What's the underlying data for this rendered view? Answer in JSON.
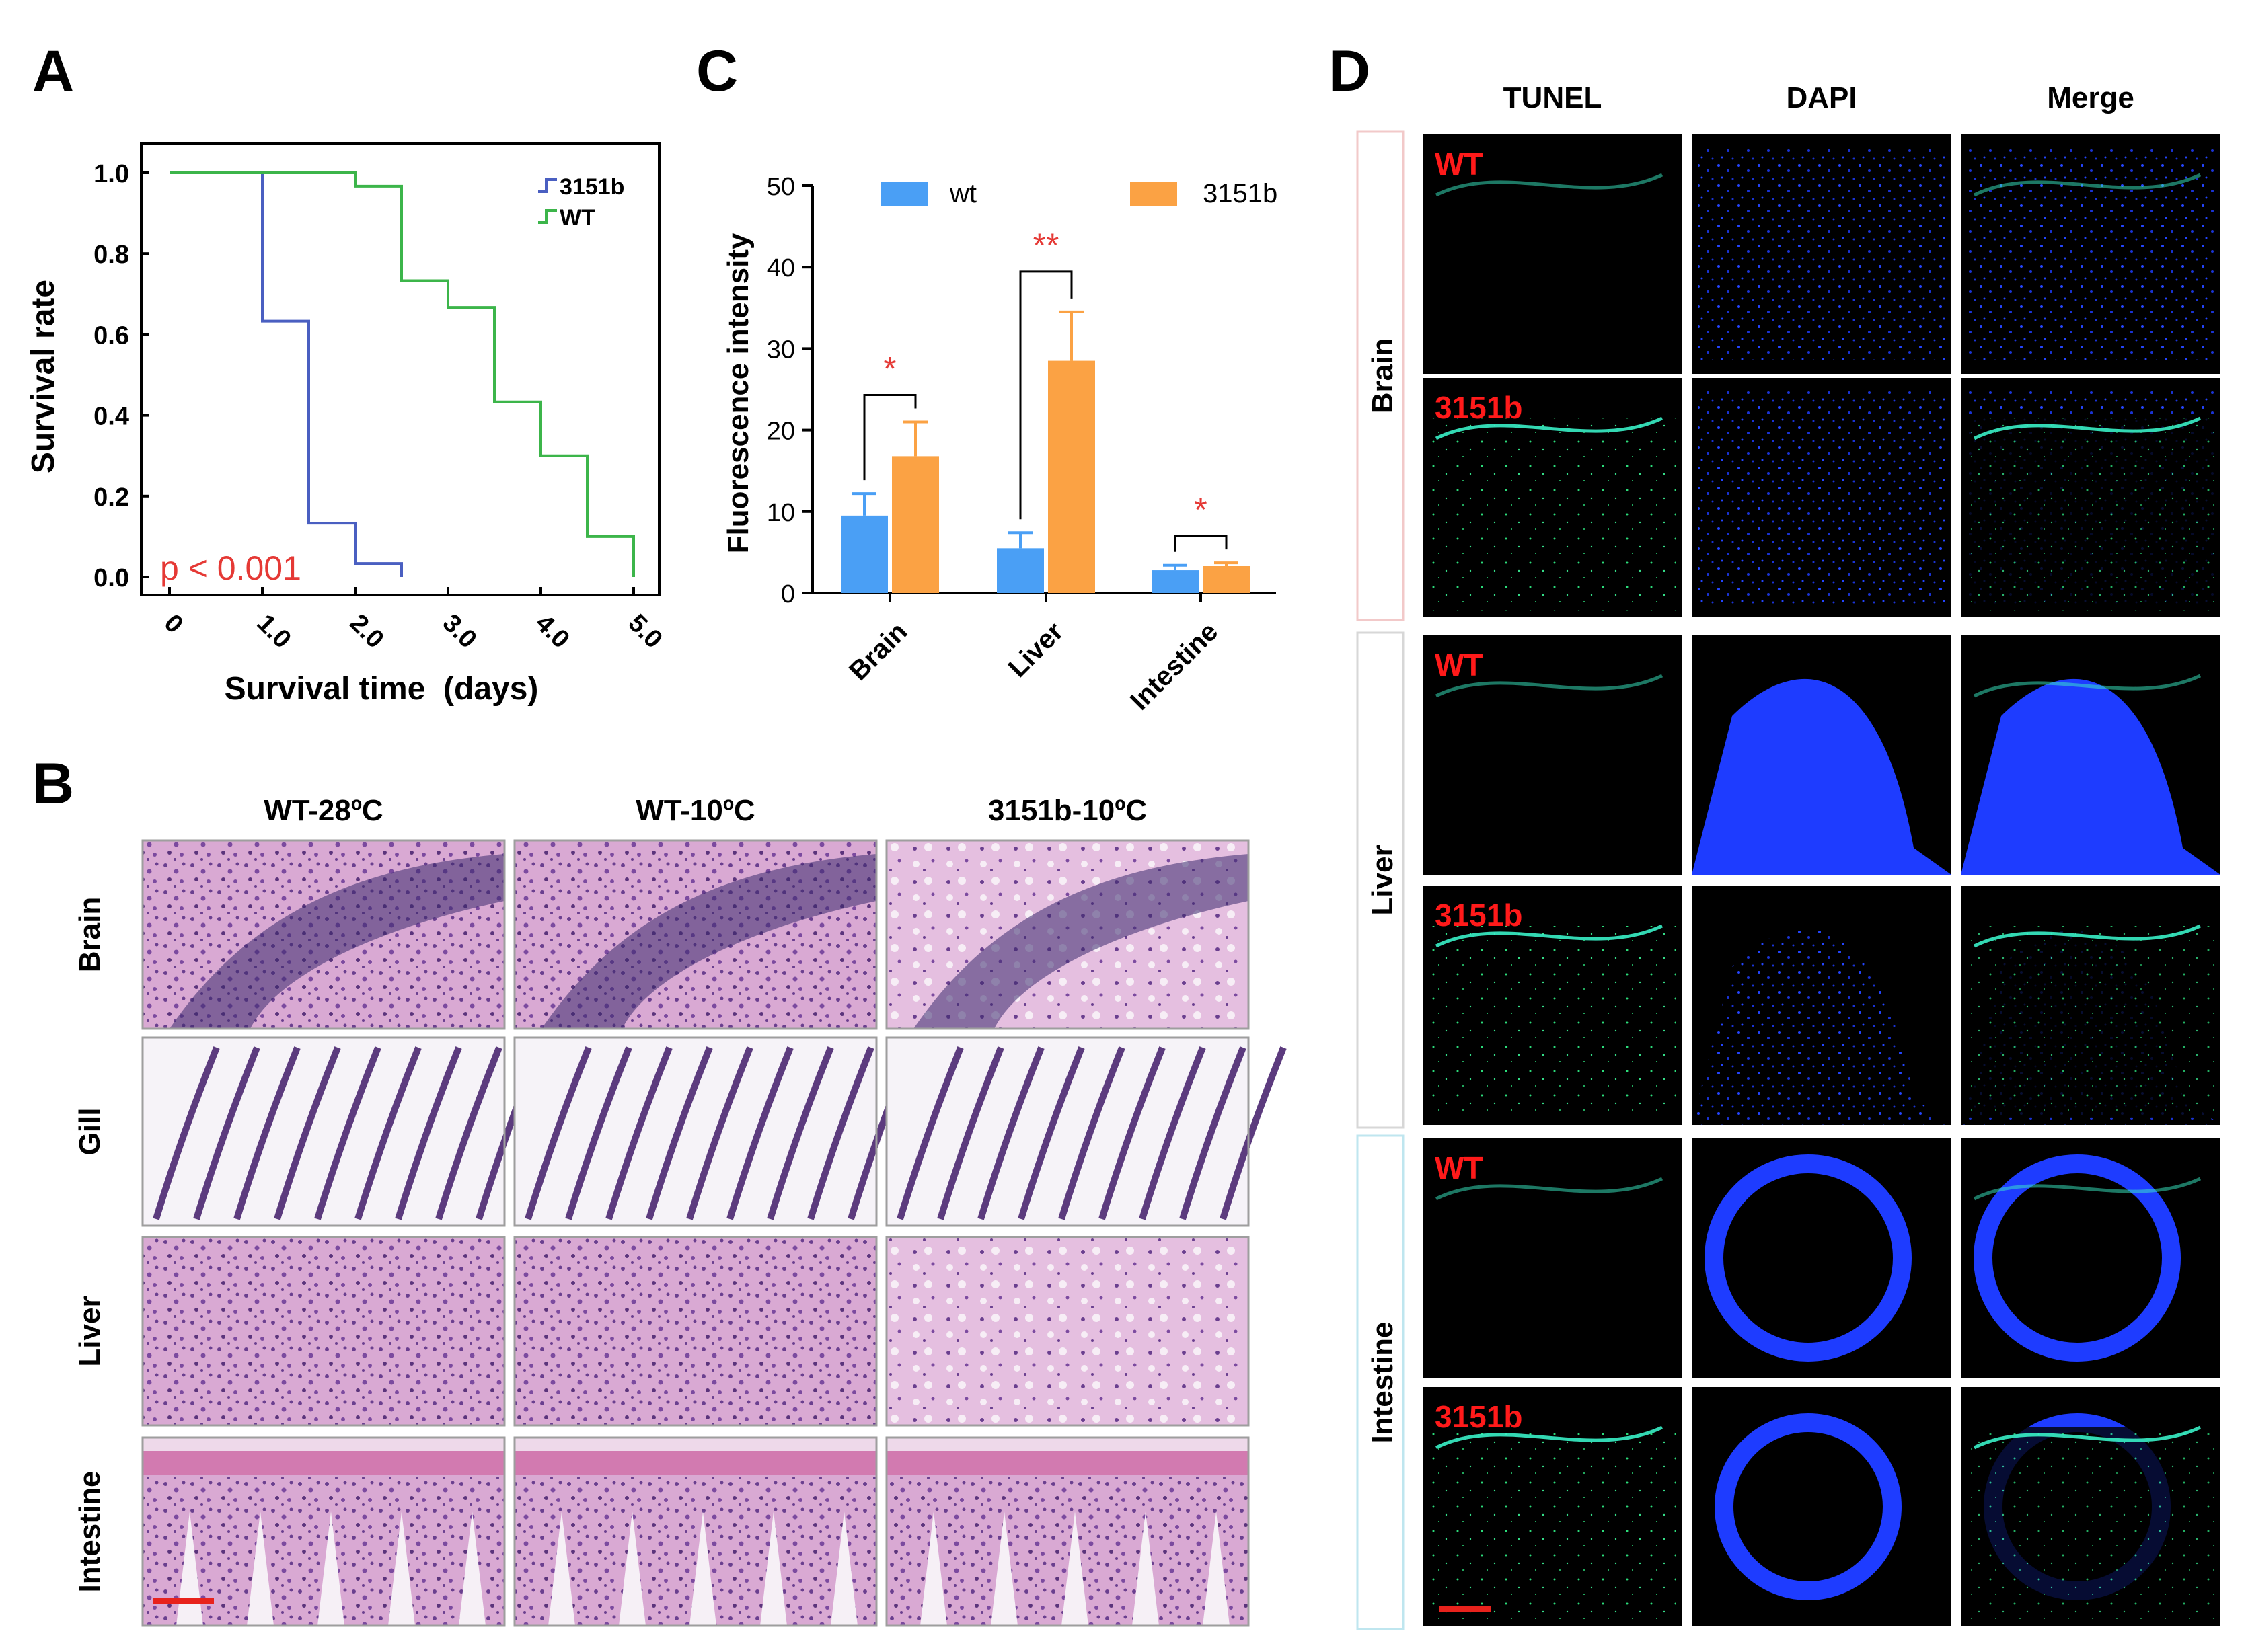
{
  "panels": {
    "a": {
      "letter": "A",
      "ylabel": "Survival rate",
      "xlabel": "Survival time  (days)",
      "pvalue_label": "p < 0.001",
      "y_ticks": [
        "0.0",
        "0.2",
        "0.4",
        "0.6",
        "0.8",
        "1.0"
      ],
      "x_ticks": [
        "0",
        "1.0",
        "2.0",
        "3.0",
        "4.0",
        "5.0"
      ]
    },
    "b": {
      "letter": "B",
      "columns": [
        "WT-28ºC",
        "WT-10ºC",
        "3151b-10ºC"
      ],
      "rows": [
        "Brain",
        "Gill",
        "Liver",
        "Intestine"
      ]
    },
    "c": {
      "letter": "C",
      "ylabel": "Fluorescence intensity",
      "y_ticks": [
        "0",
        "10",
        "20",
        "30",
        "40",
        "50"
      ],
      "significance": [
        "*",
        "**",
        "*"
      ]
    },
    "d": {
      "letter": "D",
      "columns": [
        "TUNEL",
        "DAPI",
        "Merge"
      ],
      "groups": [
        "Brain",
        "Liver",
        "Intestine"
      ],
      "row_labels": [
        "WT",
        "3151b",
        "WT",
        "3151b",
        "WT",
        "3151b"
      ]
    }
  },
  "chart_data": [
    {
      "type": "line",
      "subtype": "kaplan-meier-step",
      "xlabel": "Survival time  (days)",
      "ylabel": "Survival rate",
      "xlim": [
        0,
        5
      ],
      "ylim": [
        0,
        1
      ],
      "legend_position": "top-right",
      "annotation": "p < 0.001",
      "series": [
        {
          "name": "3151b",
          "color": "#4a5fc1",
          "x": [
            0,
            1.0,
            1.5,
            2.0,
            2.5
          ],
          "y": [
            1.0,
            0.633,
            0.133,
            0.033,
            0.0
          ]
        },
        {
          "name": "WT",
          "color": "#3cb54a",
          "x": [
            0,
            2.0,
            2.5,
            3.0,
            3.5,
            4.0,
            4.5,
            5.0
          ],
          "y": [
            1.0,
            0.967,
            0.733,
            0.667,
            0.433,
            0.3,
            0.1,
            0.0
          ]
        }
      ]
    },
    {
      "type": "bar",
      "ylabel": "Fluorescence intensity",
      "ylim": [
        0,
        50
      ],
      "legend_position": "top",
      "categories": [
        "Brain",
        "Liver",
        "Intestine"
      ],
      "series": [
        {
          "name": "wt",
          "color": "#4a9ff5",
          "values": [
            9.5,
            5.5,
            2.8
          ],
          "errors": [
            2.7,
            1.9,
            0.6
          ]
        },
        {
          "name": "3151b",
          "color": "#fba244",
          "values": [
            16.8,
            28.5,
            3.3
          ],
          "errors": [
            4.2,
            6.0,
            0.4
          ]
        }
      ],
      "significance": [
        "*",
        "**",
        "*"
      ]
    }
  ],
  "colors": {
    "significance_red": "#e53935",
    "he_stain_pink": "#c98bc0",
    "dapi_blue": "#1e3cff",
    "tunel_green": "#2bdc7a"
  }
}
